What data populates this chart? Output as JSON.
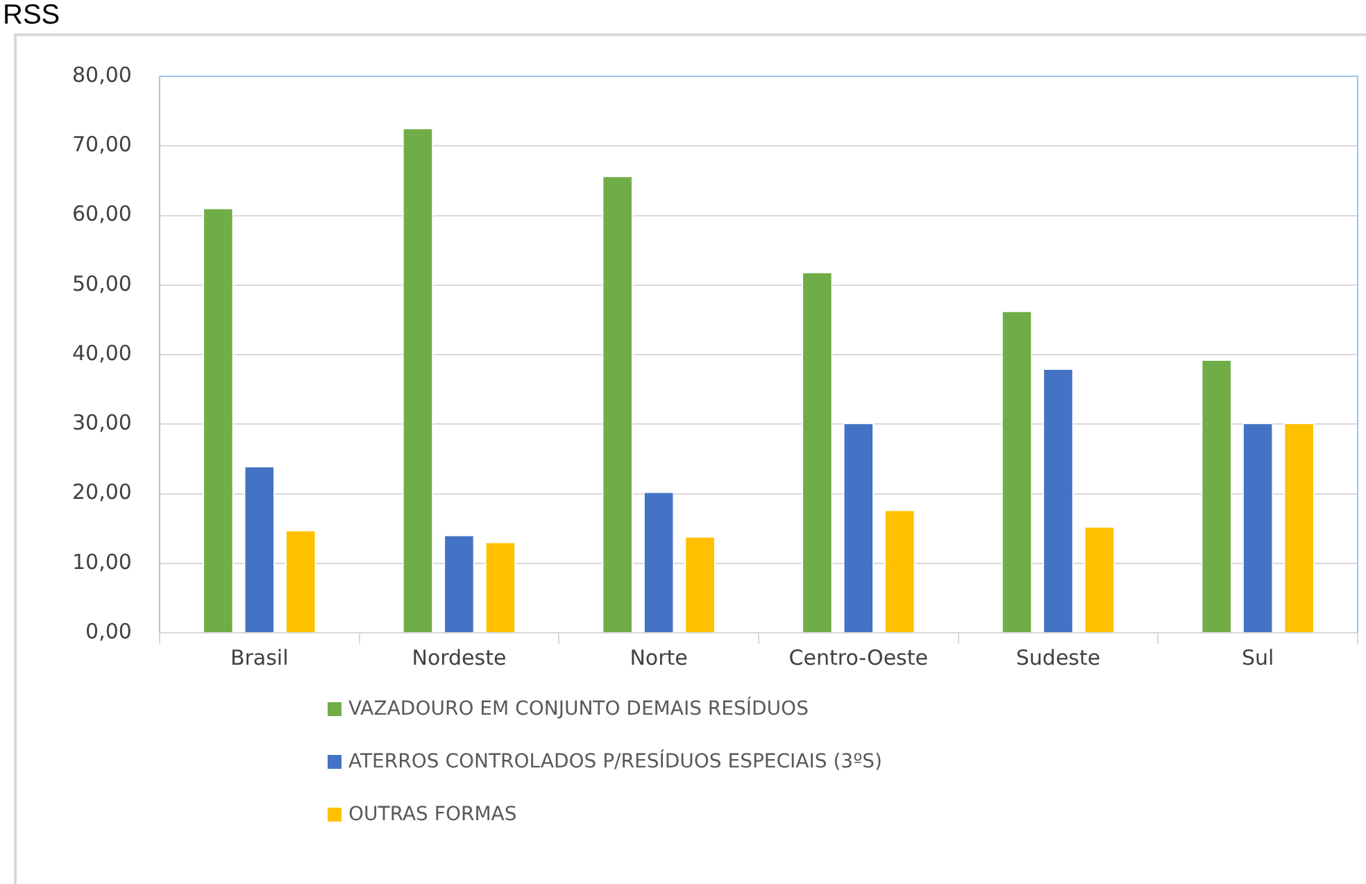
{
  "chart_data": {
    "type": "bar",
    "title": "RSS",
    "categories": [
      "Brasil",
      "Nordeste",
      "Norte",
      "Centro-Oeste",
      "Sudeste",
      "Sul"
    ],
    "series": [
      {
        "name": "VAZADOURO EM CONJUNTO DEMAIS RESÍDUOS",
        "color": "#70ad47",
        "values": [
          61.1,
          72.6,
          65.7,
          51.9,
          46.3,
          39.3
        ]
      },
      {
        "name": "ATERROS CONTROLADOS P/RESÍDUOS ESPECIAIS (3ºS)",
        "color": "#4472c4",
        "values": [
          24.0,
          14.1,
          20.3,
          30.2,
          38.0,
          30.2
        ]
      },
      {
        "name": "OUTRAS FORMAS",
        "color": "#ffc000",
        "values": [
          14.8,
          13.1,
          13.9,
          17.7,
          15.3,
          30.2
        ]
      }
    ],
    "ylim": [
      0,
      80
    ],
    "yticks": [
      {
        "value": 0,
        "label": "0,00"
      },
      {
        "value": 10,
        "label": "10,00"
      },
      {
        "value": 20,
        "label": "20,00"
      },
      {
        "value": 30,
        "label": "30,00"
      },
      {
        "value": 40,
        "label": "40,00"
      },
      {
        "value": 50,
        "label": "50,00"
      },
      {
        "value": 60,
        "label": "60,00"
      },
      {
        "value": 70,
        "label": "70,00"
      },
      {
        "value": 80,
        "label": "80,00"
      }
    ],
    "grid": "y",
    "legend": "bottom"
  }
}
